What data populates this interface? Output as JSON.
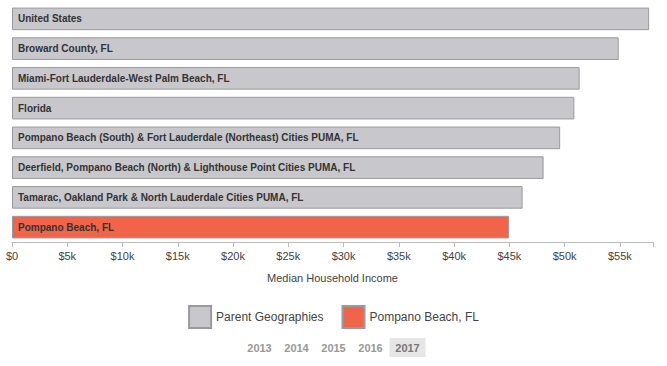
{
  "chart_data": {
    "type": "bar",
    "orientation": "horizontal",
    "categories": [
      "United States",
      "Broward County, FL",
      "Miami-Fort Lauderdale-West Palm Beach, FL",
      "Florida",
      "Pompano Beach (South) & Fort Lauderdale (Northeast) Cities PUMA, FL",
      "Deerfield, Pompano Beach (North) & Lighthouse Point Cities PUMA, FL",
      "Tamarac, Oakland Park & North Lauderdale Cities PUMA, FL",
      "Pompano Beach, FL"
    ],
    "series": [
      {
        "name": "Parent Geographies",
        "color": "#c8c8cc",
        "values": [
          57652,
          54895,
          51362,
          50883,
          49600,
          48100,
          46200,
          null
        ]
      },
      {
        "name": "Pompano Beach, FL",
        "color": "#f0654a",
        "values": [
          null,
          null,
          null,
          null,
          null,
          null,
          null,
          44979
        ]
      }
    ],
    "x_label": "Median Household Income",
    "xlim": [
      0,
      58000
    ],
    "xticks": [
      {
        "value": 0,
        "label": "$0"
      },
      {
        "value": 5000,
        "label": "$5k"
      },
      {
        "value": 10000,
        "label": "$10k"
      },
      {
        "value": 15000,
        "label": "$15k"
      },
      {
        "value": 20000,
        "label": "$20k"
      },
      {
        "value": 25000,
        "label": "$25k"
      },
      {
        "value": 30000,
        "label": "$30k"
      },
      {
        "value": 35000,
        "label": "$35k"
      },
      {
        "value": 40000,
        "label": "$40k"
      },
      {
        "value": 45000,
        "label": "$45k"
      },
      {
        "value": 50000,
        "label": "$50k"
      },
      {
        "value": 55000,
        "label": "$55k"
      }
    ],
    "grid": false,
    "legend": "bottom",
    "tick_labels": "x"
  },
  "year_selector": {
    "years": [
      "2013",
      "2014",
      "2015",
      "2016",
      "2017"
    ],
    "selected": "2017"
  }
}
